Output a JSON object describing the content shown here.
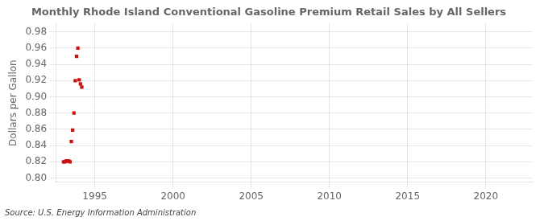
{
  "chart_data": {
    "type": "scatter",
    "title": "Monthly Rhode Island Conventional Gasoline Premium Retail Sales by All Sellers",
    "y_label": "Dollars per Gallon",
    "annotations": [
      "Source: U.S. Energy Information Administration"
    ],
    "x": [
      1993.0,
      1993.083,
      1993.167,
      1993.25,
      1993.333,
      1993.417,
      1993.5,
      1993.583,
      1993.667,
      1993.75,
      1993.833,
      1993.917,
      1994.0,
      1994.083,
      1994.167
    ],
    "values": [
      0.82,
      0.82,
      0.821,
      0.821,
      0.821,
      0.82,
      0.845,
      0.859,
      0.88,
      0.92,
      0.95,
      0.96,
      0.921,
      0.916,
      0.912
    ],
    "color": "#cc1111",
    "marker": "square",
    "xlim": [
      1992.5,
      2023
    ],
    "xticks": [
      1995,
      2000,
      2005,
      2010,
      2015,
      2020
    ],
    "ylim": [
      0.795,
      0.99
    ],
    "yticks": [
      {
        "value": 0.8,
        "label": "0.80"
      },
      0.82,
      0.84,
      0.86,
      0.88,
      {
        "value": 0.9,
        "label": "0.90"
      },
      0.92,
      0.94,
      0.96,
      0.98
    ],
    "grid": true
  }
}
